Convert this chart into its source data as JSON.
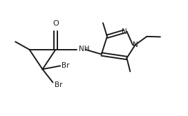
{
  "bg_color": "#ffffff",
  "line_color": "#1a1a1a",
  "line_width": 1.4,
  "font_size": 7.5,
  "figsize": [
    2.72,
    1.68
  ],
  "dpi": 100,
  "xlim": [
    0,
    10
  ],
  "ylim": [
    0,
    6.2
  ]
}
